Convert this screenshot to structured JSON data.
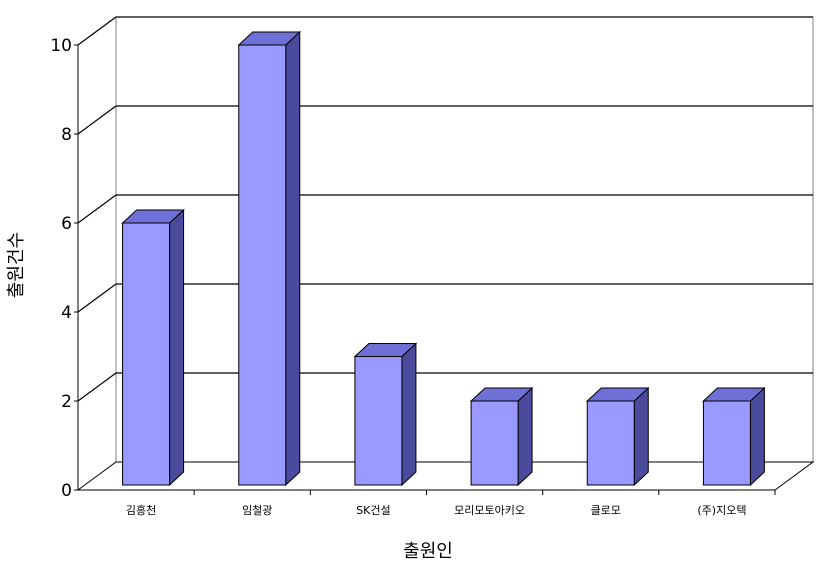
{
  "chart_data": {
    "type": "bar",
    "title": "",
    "xlabel": "출원인",
    "ylabel": "출원건수",
    "categories": [
      "김흥천",
      "임철광",
      "SK건설",
      "모리모토아키오",
      "클로모",
      "(주)지오텍"
    ],
    "values": [
      6,
      10,
      3,
      2,
      2,
      2
    ],
    "ylim": [
      0,
      10
    ],
    "yticks": [
      "0",
      "2",
      "4",
      "6",
      "8",
      "10"
    ],
    "grid": true,
    "legend": "none",
    "colors": {
      "bar_front": "#9999ff",
      "bar_top": "#6f6fd8",
      "bar_side": "#4b4b9e",
      "bar_stroke": "#000000"
    }
  }
}
